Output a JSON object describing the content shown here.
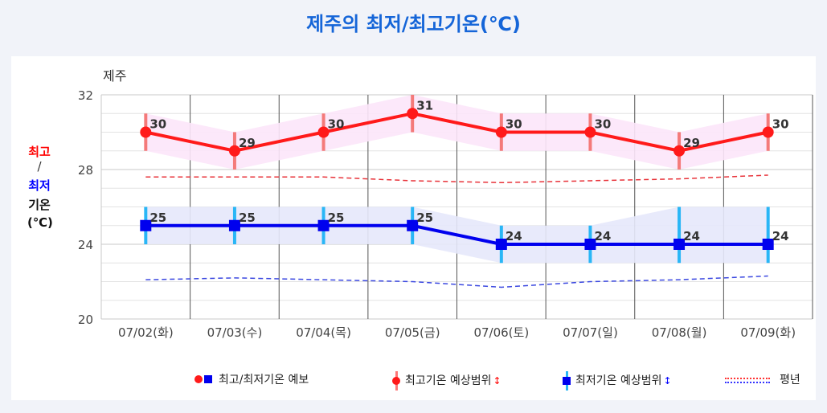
{
  "page": {
    "title": "제주의 최저/최고기온(℃)"
  },
  "chart_data": {
    "type": "line",
    "location_label": "제주",
    "categories": [
      "07/02(화)",
      "07/03(수)",
      "07/04(목)",
      "07/05(금)",
      "07/06(토)",
      "07/07(일)",
      "07/08(월)",
      "07/09(화)"
    ],
    "ylim": [
      20,
      32
    ],
    "yticks": [
      20,
      24,
      28,
      32
    ],
    "ylabel": {
      "high": "최고",
      "slash": "/",
      "low": "최저",
      "line3": "기온",
      "unit": "(℃)"
    },
    "series": [
      {
        "name": "최고기온",
        "color": "#ff1a1a",
        "values": [
          30,
          29,
          30,
          31,
          30,
          30,
          29,
          30
        ],
        "range_low": [
          29,
          28,
          29,
          30,
          29,
          29,
          28,
          29
        ],
        "range_high": [
          31,
          30,
          31,
          32,
          31,
          31,
          30,
          31
        ]
      },
      {
        "name": "최저기온",
        "color": "#0000ee",
        "values": [
          25,
          25,
          25,
          25,
          24,
          24,
          24,
          24
        ],
        "range_low": [
          24,
          24,
          24,
          24,
          23,
          23,
          23,
          23
        ],
        "range_high": [
          26,
          26,
          26,
          26,
          25,
          25,
          26,
          26
        ]
      }
    ],
    "normal_high": [
      27.6,
      27.6,
      27.6,
      27.4,
      27.3,
      27.4,
      27.5,
      27.7
    ],
    "normal_low": [
      22.1,
      22.2,
      22.1,
      22.0,
      21.7,
      22.0,
      22.1,
      22.3
    ],
    "grid": true,
    "legend": {
      "position": "bottom",
      "items": [
        "최고/최저기온 예보",
        "최고기온 예상범위",
        "최저기온 예상범위",
        "평년"
      ]
    }
  }
}
